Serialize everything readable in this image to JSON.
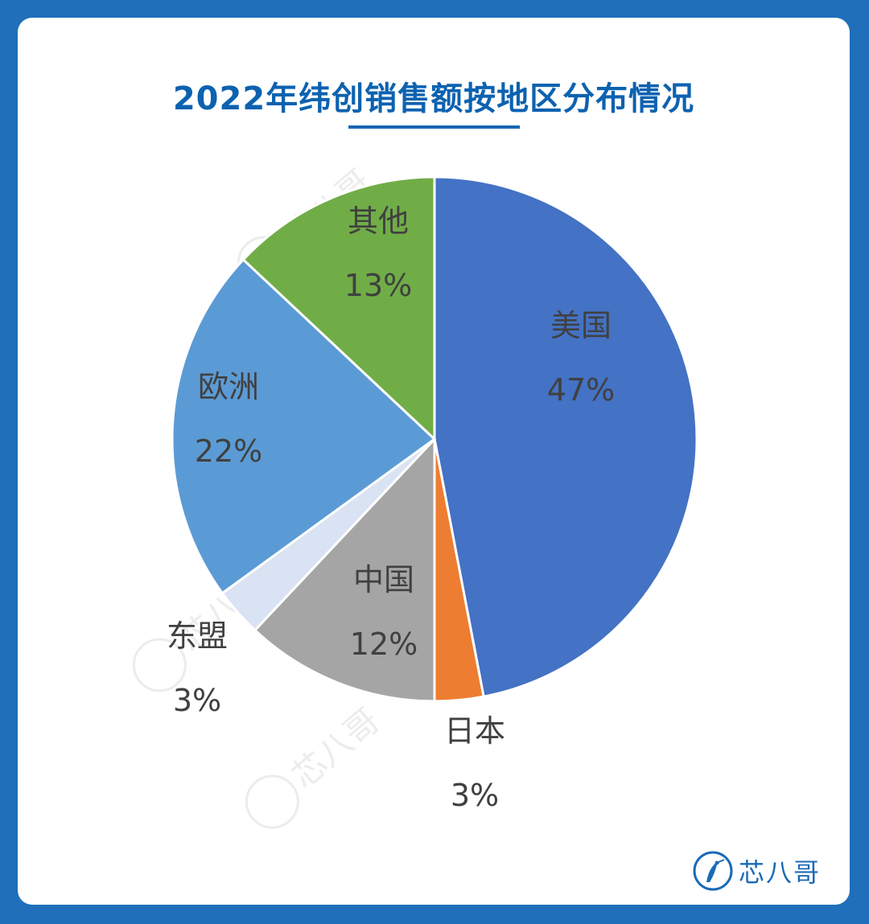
{
  "page": {
    "title": "2022年纬创销售额按地区分布情况",
    "logo_text": "芯八哥",
    "watermark_text": "芯八哥"
  },
  "colors": {
    "background": "#1f6fba",
    "title": "#0d62b0",
    "slice_us": "#4472c4",
    "slice_japan": "#ed7d31",
    "slice_china": "#a5a5a5",
    "slice_asean": "#dae3f3",
    "slice_europe": "#5b9bd5",
    "slice_other": "#70ad47"
  },
  "chart_data": {
    "type": "pie",
    "title": "2022年纬创销售额按地区分布情况",
    "start": "12 o'clock",
    "direction": "clockwise",
    "slices": [
      {
        "label": "美国",
        "value": 47,
        "value_label": "47%",
        "color": "#4472c4"
      },
      {
        "label": "日本",
        "value": 3,
        "value_label": "3%",
        "color": "#ed7d31"
      },
      {
        "label": "中国",
        "value": 12,
        "value_label": "12%",
        "color": "#a5a5a5"
      },
      {
        "label": "东盟",
        "value": 3,
        "value_label": "3%",
        "color": "#dae3f3"
      },
      {
        "label": "欧洲",
        "value": 22,
        "value_label": "22%",
        "color": "#5b9bd5"
      },
      {
        "label": "其他",
        "value": 13,
        "value_label": "13%",
        "color": "#70ad47"
      }
    ]
  }
}
